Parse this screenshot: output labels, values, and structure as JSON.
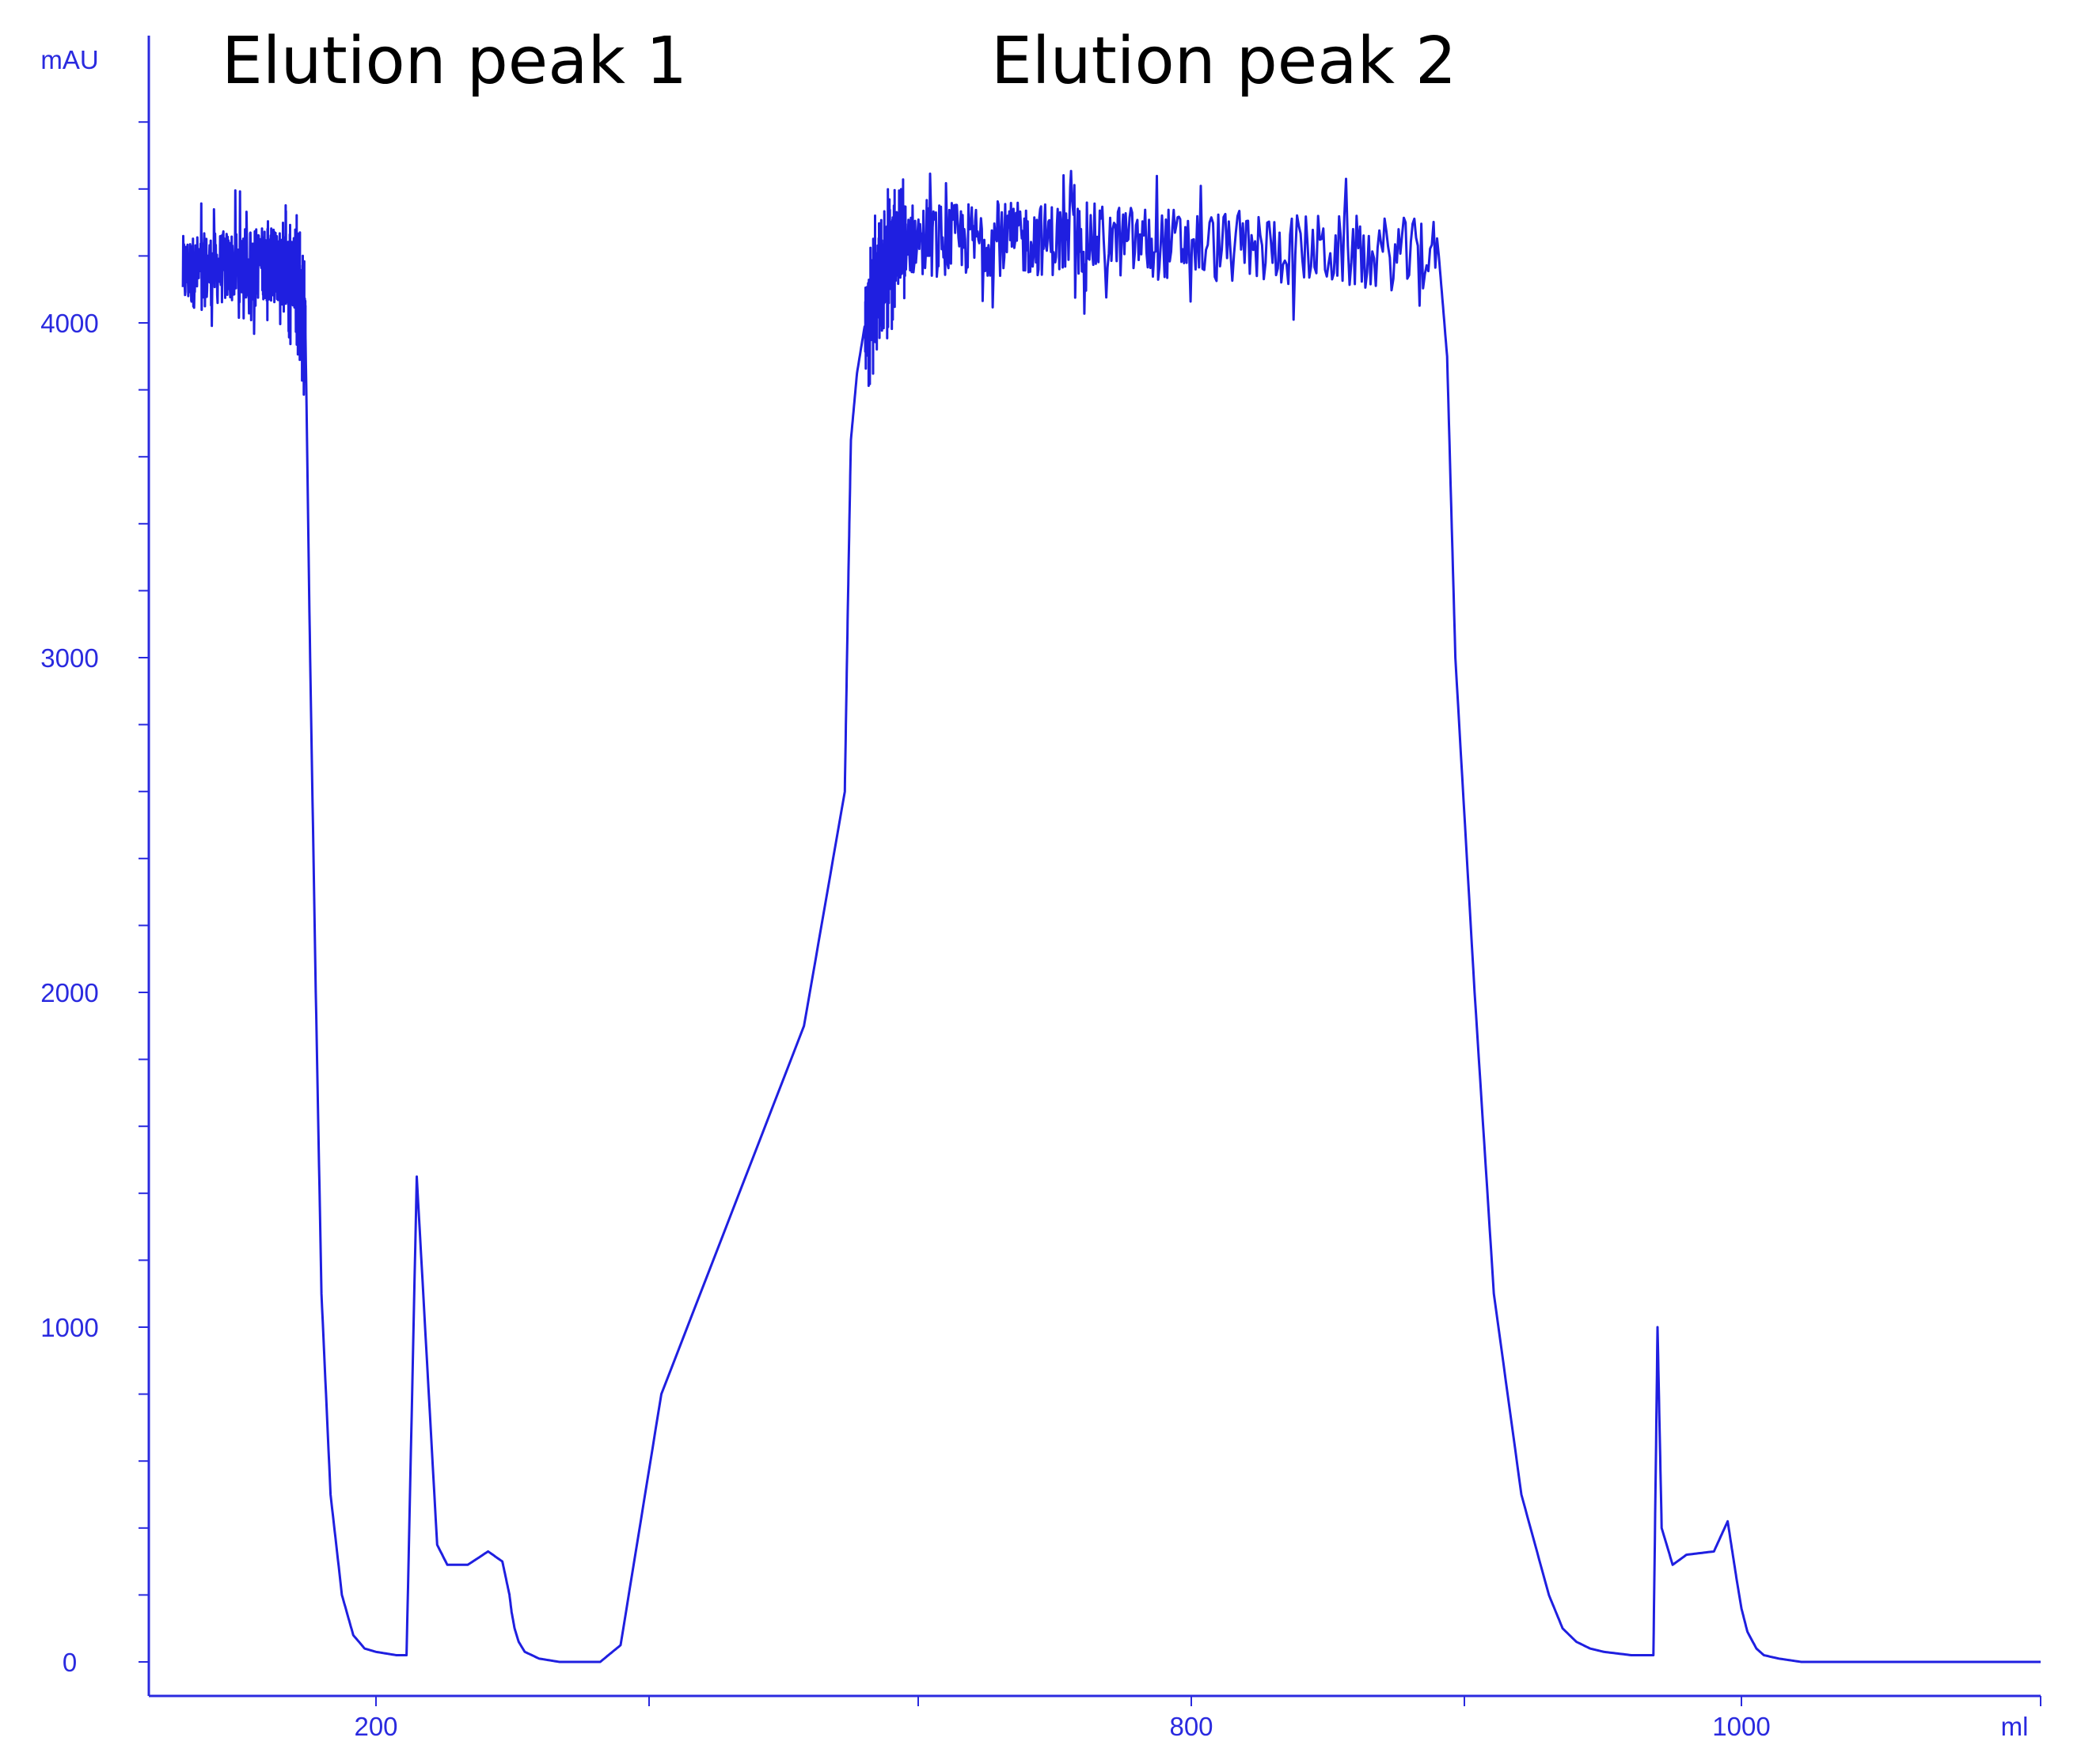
{
  "chart_data": {
    "type": "line",
    "title": "",
    "xlabel": "",
    "ylabel": "",
    "y_unit": "mAU",
    "x_unit": "ml",
    "ylim": [
      -100,
      4800
    ],
    "y_ticks": [
      0,
      1000,
      2000,
      3000,
      4000
    ],
    "y_tick_labels": [
      "0",
      "1000",
      "2000",
      "3000",
      "4000"
    ],
    "x_ticks": [
      200,
      800,
      1000
    ],
    "x_tick_labels": [
      "200",
      "800",
      "1000"
    ],
    "grid": false,
    "legend": "none",
    "line_color": "#1f1fe0",
    "axis_color": "#2a2adf",
    "annotations": [
      "Elution peak 1",
      "Elution peak 2"
    ],
    "series": [
      {
        "x": [
          0.03,
          0.1,
          0.13,
          0.138,
          0.142,
          0.147,
          0.152,
          0.16,
          0.17,
          0.18,
          0.19,
          0.2,
          0.21,
          0.215,
          0.22,
          0.23,
          0.235,
          0.245,
          0.255,
          0.262,
          0.2655,
          0.2665,
          0.268,
          0.27,
          0.273,
          0.28,
          0.29,
          0.295,
          0.31,
          0.32,
          0.34,
          0.41,
          0.43,
          0.4315,
          0.433,
          0.436,
          0.44,
          0.445,
          0.452,
          0.46,
          0.55,
          0.69,
          0.693,
          0.696,
          0.703,
          0.71,
          0.72,
          0.73,
          0.735,
          0.74,
          0.745,
          0.75,
          0.76,
          0.768,
          0.7695,
          0.771,
          0.775,
          0.78,
          0.79,
          0.795,
          0.798,
          0.8,
          0.804,
          0.81,
          0.815,
          0.825,
          0.84,
          0.86,
          1.0
        ],
        "y": [
          4150,
          4180,
          4150,
          3950,
          3000,
          2000,
          1100,
          500,
          200,
          80,
          40,
          30,
          20,
          20,
          1450,
          350,
          290,
          290,
          330,
          300,
          200,
          150,
          100,
          60,
          30,
          10,
          0,
          0,
          0,
          50,
          800,
          1900,
          2600,
          3150,
          3650,
          3850,
          4000,
          4100,
          4200,
          4250,
          4250,
          4200,
          3900,
          3000,
          2000,
          1100,
          500,
          200,
          100,
          60,
          40,
          30,
          20,
          20,
          1000,
          400,
          290,
          320,
          330,
          420,
          260,
          160,
          90,
          40,
          20,
          10,
          0,
          0,
          0
        ]
      }
    ]
  }
}
